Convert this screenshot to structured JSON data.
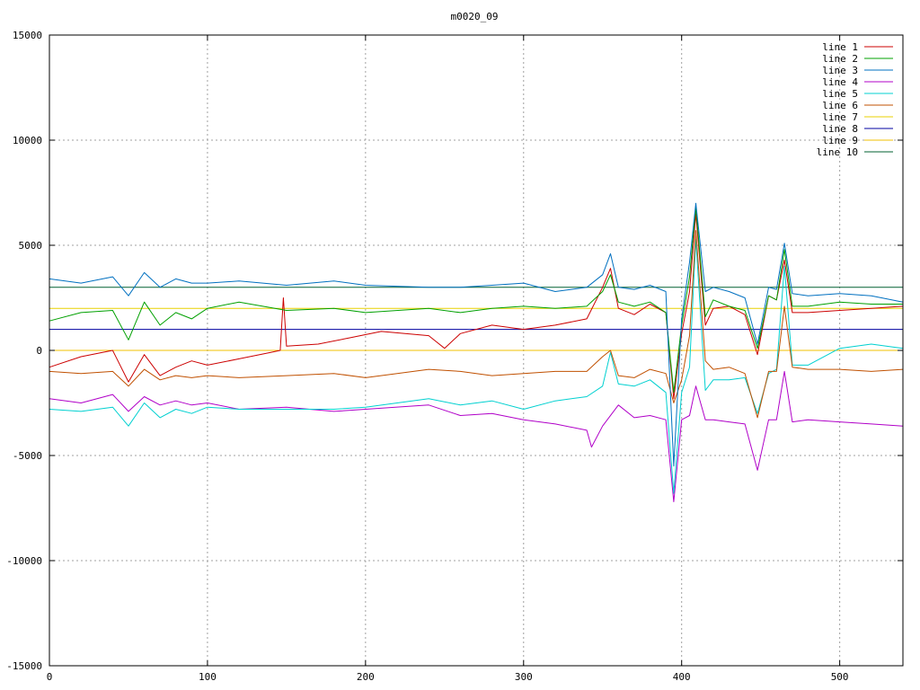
{
  "chart_data": {
    "type": "line",
    "title": "m0020_09",
    "xlabel": "",
    "ylabel": "",
    "xlim": [
      0,
      540
    ],
    "ylim": [
      -15000,
      15000
    ],
    "x_ticks": [
      0,
      100,
      200,
      300,
      400,
      500
    ],
    "y_ticks": [
      -15000,
      -10000,
      -5000,
      0,
      5000,
      10000,
      15000
    ],
    "grid": true,
    "legend_position": "top-right",
    "series": [
      {
        "name": "line 1",
        "color": "#cc0000",
        "x": [
          0,
          20,
          40,
          50,
          60,
          70,
          80,
          90,
          100,
          120,
          140,
          146,
          148,
          150,
          170,
          190,
          210,
          240,
          250,
          260,
          280,
          300,
          320,
          340,
          350,
          355,
          360,
          370,
          380,
          390,
          395,
          400,
          405,
          409,
          415,
          420,
          430,
          440,
          448,
          455,
          460,
          465,
          470,
          480,
          500,
          520,
          540
        ],
        "y": [
          -800,
          -300,
          0,
          -1500,
          -200,
          -1200,
          -800,
          -500,
          -700,
          -400,
          -100,
          0,
          2500,
          200,
          300,
          600,
          900,
          700,
          100,
          800,
          1200,
          1000,
          1200,
          1500,
          3000,
          3900,
          2000,
          1700,
          2200,
          1800,
          -2300,
          800,
          2800,
          6500,
          1200,
          2000,
          2100,
          1700,
          -200,
          2600,
          2400,
          4300,
          1800,
          1800,
          1900,
          2000,
          2100
        ]
      },
      {
        "name": "line 2",
        "color": "#00a000",
        "x": [
          0,
          20,
          40,
          50,
          60,
          70,
          80,
          90,
          100,
          120,
          150,
          180,
          200,
          240,
          260,
          280,
          300,
          320,
          340,
          350,
          355,
          360,
          370,
          380,
          390,
          395,
          400,
          405,
          409,
          415,
          420,
          430,
          440,
          448,
          455,
          460,
          465,
          470,
          480,
          500,
          520,
          540
        ],
        "y": [
          1400,
          1800,
          1900,
          500,
          2300,
          1200,
          1800,
          1500,
          2000,
          2300,
          1900,
          2000,
          1800,
          2000,
          1800,
          2000,
          2100,
          2000,
          2100,
          2800,
          3600,
          2300,
          2100,
          2300,
          1800,
          -2000,
          1200,
          3500,
          6800,
          1600,
          2400,
          2100,
          1900,
          100,
          2600,
          2400,
          4800,
          2100,
          2100,
          2300,
          2200,
          2200
        ]
      },
      {
        "name": "line 3",
        "color": "#0070c0",
        "x": [
          0,
          20,
          40,
          50,
          60,
          70,
          80,
          90,
          100,
          120,
          150,
          180,
          200,
          240,
          260,
          280,
          300,
          320,
          340,
          350,
          355,
          360,
          370,
          380,
          390,
          395,
          400,
          405,
          409,
          415,
          420,
          430,
          440,
          448,
          455,
          460,
          465,
          470,
          480,
          500,
          520,
          540
        ],
        "y": [
          3400,
          3200,
          3500,
          2600,
          3700,
          3000,
          3400,
          3200,
          3200,
          3300,
          3100,
          3300,
          3100,
          3000,
          3000,
          3100,
          3200,
          2800,
          3000,
          3600,
          4600,
          3000,
          2900,
          3100,
          2800,
          -5500,
          1500,
          4200,
          7000,
          2800,
          3000,
          2800,
          2500,
          300,
          3000,
          2900,
          5100,
          2700,
          2600,
          2700,
          2600,
          2300
        ]
      },
      {
        "name": "line 4",
        "color": "#b000c8",
        "x": [
          0,
          20,
          40,
          50,
          60,
          70,
          80,
          90,
          100,
          120,
          150,
          180,
          200,
          240,
          260,
          280,
          300,
          320,
          340,
          343,
          350,
          360,
          370,
          380,
          390,
          395,
          400,
          405,
          409,
          415,
          420,
          430,
          440,
          448,
          455,
          460,
          465,
          470,
          480,
          500,
          520,
          540
        ],
        "y": [
          -2300,
          -2500,
          -2100,
          -2900,
          -2200,
          -2600,
          -2400,
          -2600,
          -2500,
          -2800,
          -2700,
          -2900,
          -2800,
          -2600,
          -3100,
          -3000,
          -3300,
          -3500,
          -3800,
          -4600,
          -3600,
          -2600,
          -3200,
          -3100,
          -3300,
          -7200,
          -3300,
          -3100,
          -1700,
          -3300,
          -3300,
          -3400,
          -3500,
          -5700,
          -3300,
          -3300,
          -1000,
          -3400,
          -3300,
          -3400,
          -3500,
          -3600
        ]
      },
      {
        "name": "line 5",
        "color": "#00d0d0",
        "x": [
          0,
          20,
          40,
          50,
          60,
          70,
          80,
          90,
          100,
          120,
          150,
          180,
          200,
          240,
          260,
          280,
          300,
          320,
          340,
          350,
          355,
          360,
          370,
          380,
          390,
          395,
          400,
          405,
          409,
          415,
          420,
          430,
          440,
          448,
          455,
          460,
          465,
          470,
          480,
          500,
          520,
          540
        ],
        "y": [
          -2800,
          -2900,
          -2700,
          -3600,
          -2500,
          -3200,
          -2800,
          -3000,
          -2700,
          -2800,
          -2800,
          -2800,
          -2700,
          -2300,
          -2600,
          -2400,
          -2800,
          -2400,
          -2200,
          -1700,
          -100,
          -1600,
          -1700,
          -1400,
          -2000,
          -6800,
          -2000,
          -800,
          5300,
          -1900,
          -1400,
          -1400,
          -1300,
          -3000,
          -1100,
          -900,
          4000,
          -700,
          -700,
          100,
          300,
          100
        ]
      },
      {
        "name": "line 6",
        "color": "#c05000",
        "x": [
          0,
          20,
          40,
          50,
          60,
          70,
          80,
          90,
          100,
          120,
          150,
          180,
          200,
          240,
          260,
          280,
          300,
          320,
          340,
          350,
          355,
          360,
          370,
          380,
          390,
          395,
          400,
          405,
          409,
          415,
          420,
          430,
          440,
          448,
          455,
          460,
          465,
          470,
          480,
          500,
          520,
          540
        ],
        "y": [
          -1000,
          -1100,
          -1000,
          -1700,
          -900,
          -1400,
          -1200,
          -1300,
          -1200,
          -1300,
          -1200,
          -1100,
          -1300,
          -900,
          -1000,
          -1200,
          -1100,
          -1000,
          -1000,
          -300,
          0,
          -1200,
          -1300,
          -900,
          -1100,
          -2500,
          -1400,
          700,
          5700,
          -500,
          -900,
          -800,
          -1100,
          -3200,
          -1000,
          -1000,
          2100,
          -800,
          -900,
          -900,
          -1000,
          -900
        ]
      },
      {
        "name": "line 7",
        "color": "#e8d000",
        "x": [
          0,
          540
        ],
        "y": [
          2000,
          2000
        ]
      },
      {
        "name": "line 8",
        "color": "#0000a0",
        "x": [
          0,
          540
        ],
        "y": [
          1000,
          1000
        ]
      },
      {
        "name": "line 9",
        "color": "#f0c000",
        "x": [
          0,
          540
        ],
        "y": [
          0,
          0
        ]
      },
      {
        "name": "line 10",
        "color": "#006030",
        "x": [
          0,
          540
        ],
        "y": [
          3000,
          3000
        ]
      }
    ]
  }
}
